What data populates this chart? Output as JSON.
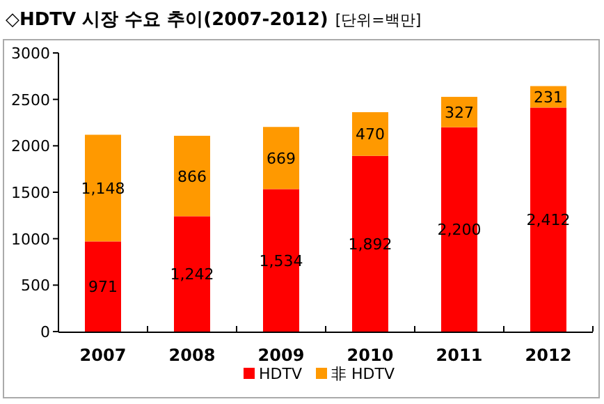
{
  "chart_data": {
    "type": "bar",
    "title": "◇HDTV 시장 수요 추이(2007-2012)",
    "subtitle": "[단위=백만]",
    "categories": [
      "2007",
      "2008",
      "2009",
      "2010",
      "2011",
      "2012"
    ],
    "stacked": true,
    "ylim": [
      0,
      3000
    ],
    "yticks": [
      0,
      500,
      1000,
      1500,
      2000,
      2500,
      3000
    ],
    "legend": "bottom",
    "grid": false,
    "series": [
      {
        "name": "HDTV",
        "color": "#ff0000",
        "values": [
          971,
          1242,
          1534,
          1892,
          2200,
          2412
        ],
        "value_labels": [
          "971",
          "1,242",
          "1,534",
          "1,892",
          "2,200",
          "2,412"
        ]
      },
      {
        "name": "非 HDTV",
        "color": "#ff9900",
        "values": [
          1148,
          866,
          669,
          470,
          327,
          231
        ],
        "value_labels": [
          "1,148",
          "866",
          "669",
          "470",
          "327",
          "231"
        ]
      }
    ]
  }
}
